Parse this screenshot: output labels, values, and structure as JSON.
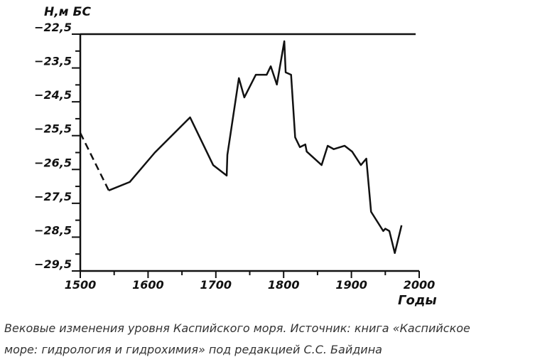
{
  "chart_data": {
    "type": "line",
    "ylabel": "H,м БС",
    "xlabel": "Годы",
    "caption": [
      "Вековые изменения уровня Каспийского моря. Источник: книга «Каспийское",
      "море: гидрология и гидрохимия» под редакцией С.С. Байдина"
    ],
    "xlim": [
      1500,
      2000
    ],
    "xticks": [
      1500,
      1600,
      1700,
      1800,
      1900,
      2000
    ],
    "xticks_minor": [
      1550,
      1650,
      1750,
      1850,
      1950
    ],
    "ylim": [
      -29.5,
      -22.5
    ],
    "yticks": [
      {
        "value": -22.5,
        "label": "−22,5"
      },
      {
        "value": -23.5,
        "label": "−23,5"
      },
      {
        "value": -24.5,
        "label": "−24,5"
      },
      {
        "value": -25.5,
        "label": "−25,5"
      },
      {
        "value": -26.5,
        "label": "−26,5"
      },
      {
        "value": -27.5,
        "label": "−27,5"
      },
      {
        "value": -28.5,
        "label": "−28,5"
      },
      {
        "value": -29.5,
        "label": "−29,5"
      }
    ],
    "yticks_minor": [
      -23,
      -24,
      -25,
      -26,
      -27,
      -28,
      -29
    ],
    "color": "#111111",
    "segments": [
      {
        "style": "dashed",
        "x": [
          1500,
          1542
        ],
        "values": [
          -25.42,
          -27.12
        ]
      },
      {
        "style": "solid",
        "x": [
          1542,
          1573,
          1610,
          1662,
          1696,
          1716,
          1717,
          1734,
          1742,
          1759,
          1775,
          1781,
          1790,
          1801,
          1803,
          1811,
          1817,
          1824,
          1832,
          1834,
          1856,
          1865,
          1874,
          1890,
          1901,
          1914,
          1922,
          1929,
          1947,
          1950,
          1956,
          1964,
          1974
        ],
        "values": [
          -27.12,
          -26.87,
          -26.0,
          -24.96,
          -26.37,
          -26.68,
          -26.07,
          -23.8,
          -24.37,
          -23.7,
          -23.7,
          -23.45,
          -23.99,
          -22.71,
          -23.63,
          -23.7,
          -25.55,
          -25.84,
          -25.76,
          -25.97,
          -26.37,
          -25.8,
          -25.9,
          -25.8,
          -25.97,
          -26.37,
          -26.18,
          -27.75,
          -28.32,
          -28.25,
          -28.32,
          -28.97,
          -28.15
        ]
      }
    ]
  }
}
